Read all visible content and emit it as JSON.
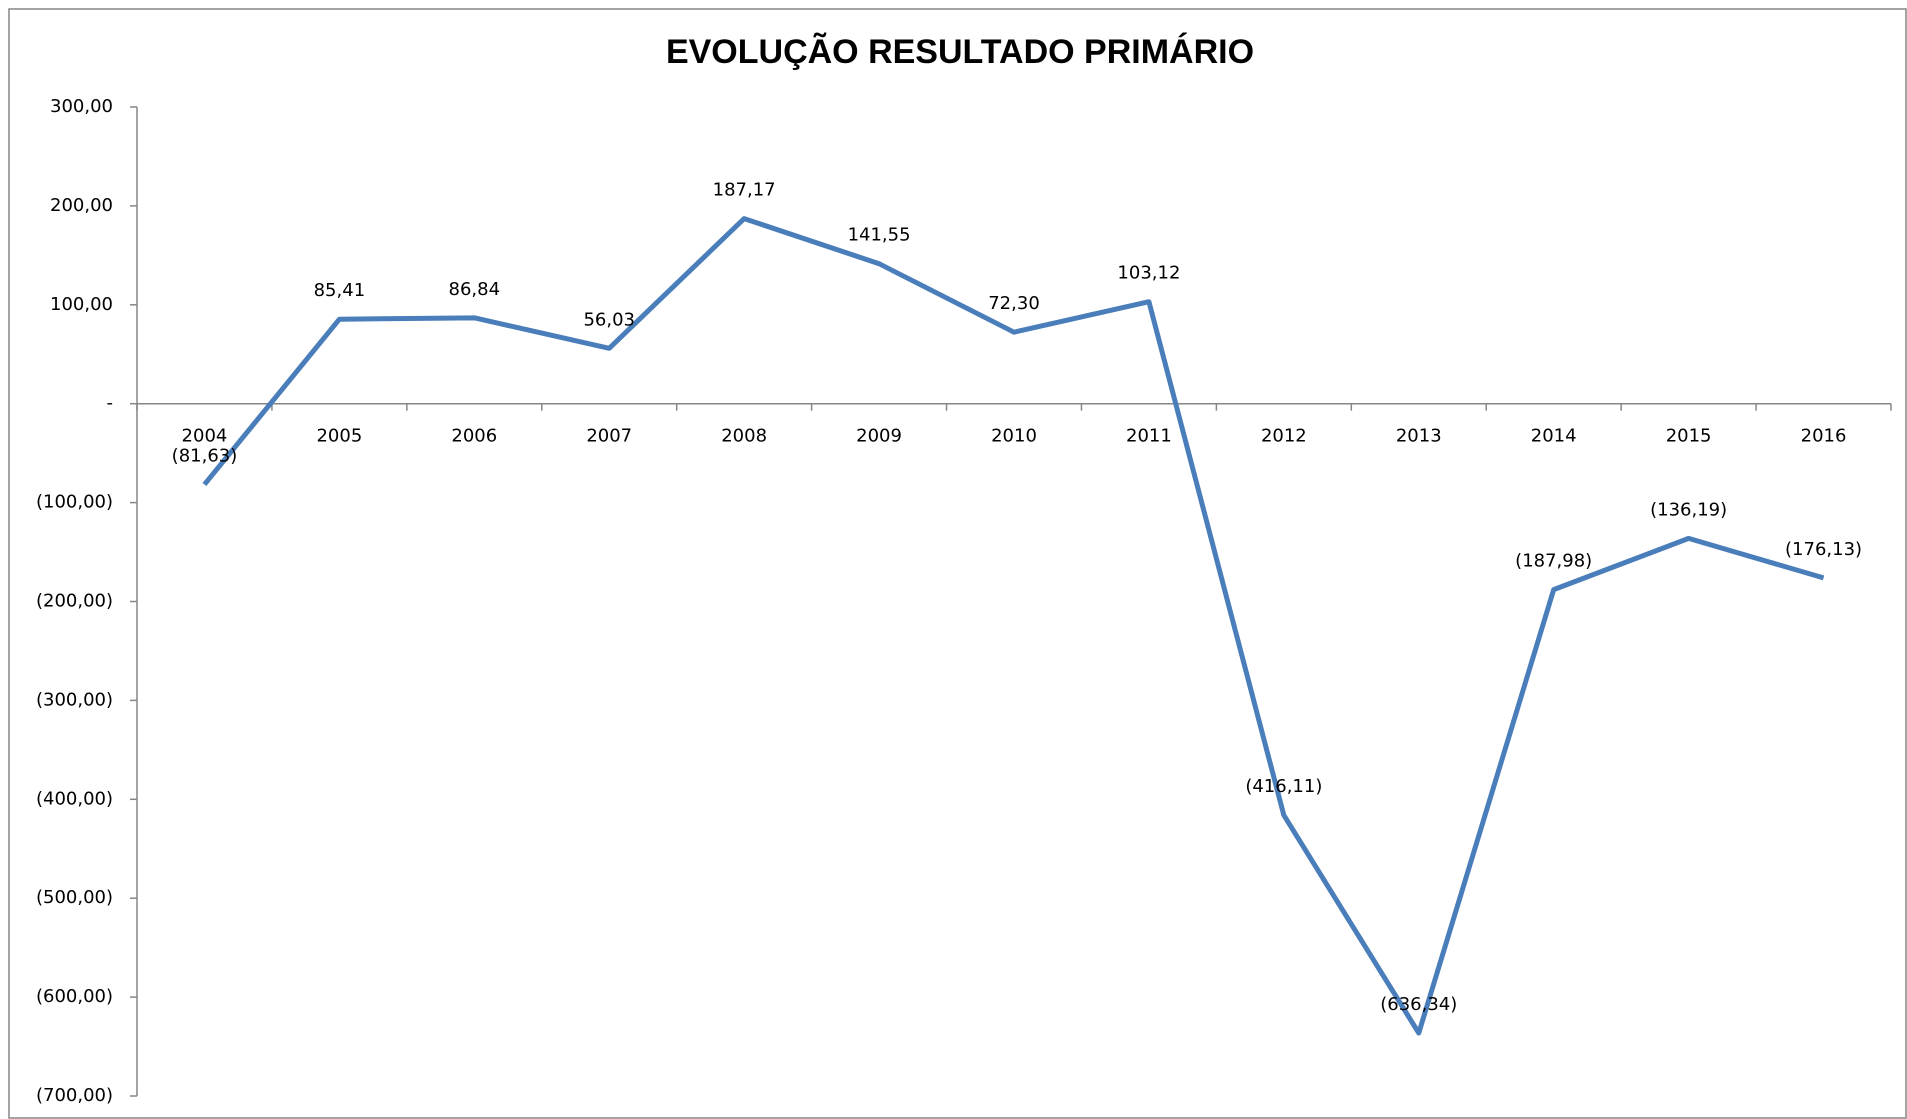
{
  "chart_data": {
    "type": "line",
    "title": "EVOLUÇÃO RESULTADO PRIMÁRIO",
    "categories": [
      "2004",
      "2005",
      "2006",
      "2007",
      "2008",
      "2009",
      "2010",
      "2011",
      "2012",
      "2013",
      "2014",
      "2015",
      "2016"
    ],
    "values": [
      -81.63,
      85.41,
      86.84,
      56.03,
      187.17,
      141.55,
      72.3,
      103.12,
      -416.11,
      -636.34,
      -187.98,
      -136.19,
      -176.13
    ],
    "value_labels": [
      "(81,63)",
      "85,41",
      "86,84",
      "56,03",
      "187,17",
      "141,55",
      "72,30",
      "103,12",
      "(416,11)",
      "(636,34)",
      "(187,98)",
      "(136,19)",
      "(176,13)"
    ],
    "color": "#4a7ebb",
    "ylim": [
      -700,
      300
    ],
    "yticks": [
      {
        "value": 300,
        "label": "300,00"
      },
      {
        "value": 200,
        "label": "200,00"
      },
      {
        "value": 100,
        "label": "100,00"
      },
      {
        "value": 0,
        "label": "-"
      },
      {
        "value": -100,
        "label": "(100,00)"
      },
      {
        "value": -200,
        "label": "(200,00)"
      },
      {
        "value": -300,
        "label": "(300,00)"
      },
      {
        "value": -400,
        "label": "(400,00)"
      },
      {
        "value": -500,
        "label": "(500,00)"
      },
      {
        "value": -600,
        "label": "(600,00)"
      },
      {
        "value": -700,
        "label": "(700,00)"
      }
    ],
    "grid": false
  }
}
